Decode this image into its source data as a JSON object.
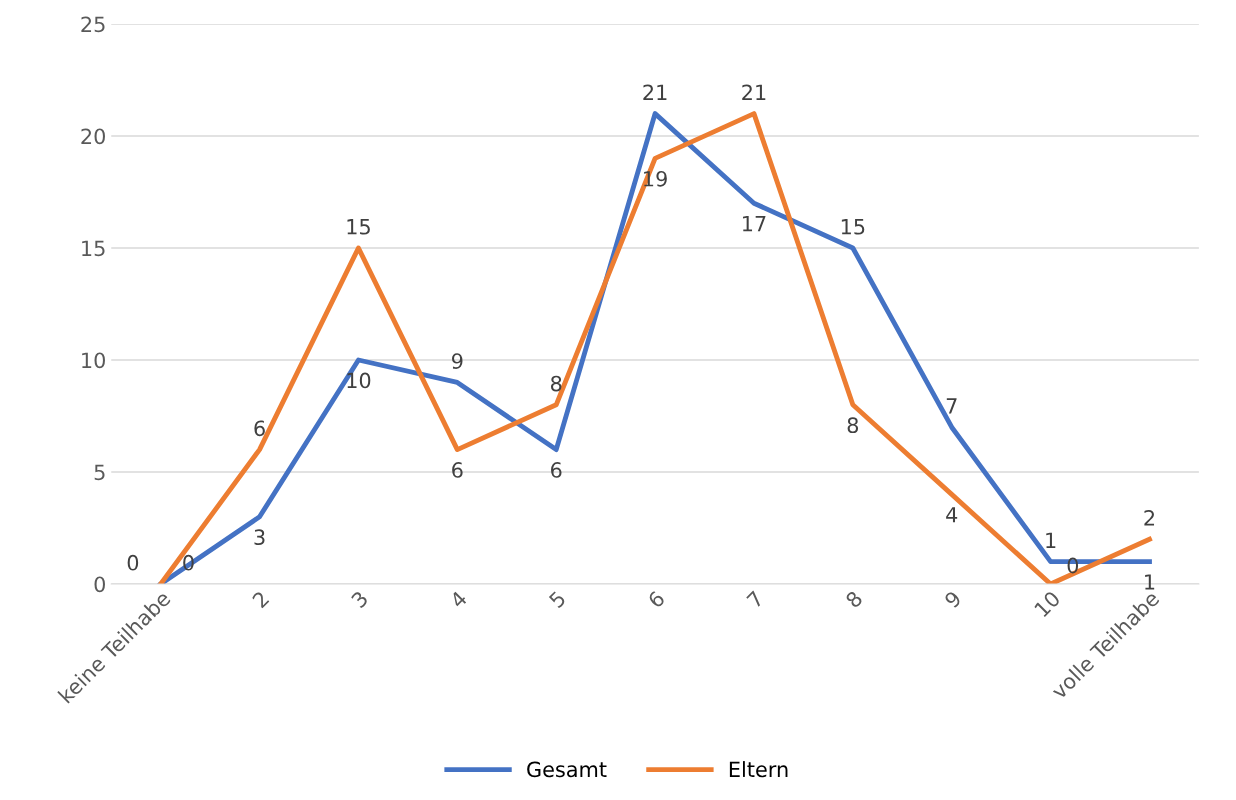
{
  "chart_data": {
    "type": "line",
    "categories": [
      "keine Teilhabe",
      "2",
      "3",
      "4",
      "5",
      "6",
      "7",
      "8",
      "9",
      "10",
      "volle Teilhabe"
    ],
    "series": [
      {
        "name": "Gesamt",
        "color": "#4472c4",
        "values": [
          0,
          3,
          10,
          9,
          6,
          21,
          17,
          15,
          7,
          1,
          1
        ]
      },
      {
        "name": "Eltern",
        "color": "#ed7d31",
        "values": [
          0,
          6,
          15,
          6,
          8,
          19,
          21,
          8,
          4,
          0,
          2
        ]
      }
    ],
    "ylim": [
      0,
      25
    ],
    "yticks": [
      0,
      5,
      10,
      15,
      20,
      25
    ],
    "grid": "y",
    "legend": "bottom",
    "data_labels": true,
    "marker": "none",
    "line_style": "solid"
  }
}
